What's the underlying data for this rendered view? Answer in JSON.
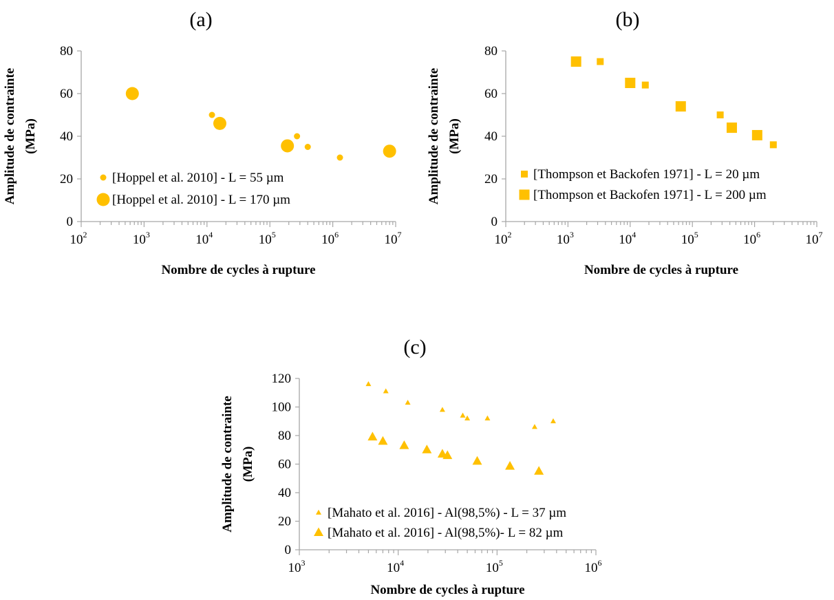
{
  "colors": {
    "marker": "#ffc000",
    "axis": "#a6a6a6",
    "text": "#000000"
  },
  "chart_data": [
    {
      "type": "scatter",
      "panel_label": "(a)",
      "xlabel": "Nombre  de cycles à rupture",
      "ylabel_line1": "Amplitude  de  contrainte",
      "ylabel_line2": "(MPa)",
      "x_scale": "log",
      "xlim": [
        100,
        10000000
      ],
      "ylim": [
        0,
        80
      ],
      "yticks": [
        "0",
        "20",
        "40",
        "60",
        "80"
      ],
      "xticks": [
        {
          "base": "10",
          "exp": "2"
        },
        {
          "base": "10",
          "exp": "3"
        },
        {
          "base": "10",
          "exp": "4"
        },
        {
          "base": "10",
          "exp": "5"
        },
        {
          "base": "10",
          "exp": "6"
        },
        {
          "base": "10",
          "exp": "7"
        }
      ],
      "grid": false,
      "legend_position": "bottom-left",
      "series": [
        {
          "name": "[Hoppel et al. 2010] - L = 55 µm",
          "marker": "circle",
          "marker_scale": "small",
          "points": [
            [
              12000,
              50
            ],
            [
              270000,
              40
            ],
            [
              400000,
              35
            ],
            [
              1300000,
              30
            ]
          ]
        },
        {
          "name": "[Hoppel et al. 2010] - L = 170 µm",
          "marker": "circle",
          "marker_scale": "large",
          "points": [
            [
              650,
              60
            ],
            [
              16000,
              46
            ],
            [
              190000,
              35.5
            ],
            [
              8000000,
              33
            ]
          ]
        }
      ]
    },
    {
      "type": "scatter",
      "panel_label": "(b)",
      "xlabel": "Nombre  de cycles à rupture",
      "ylabel_line1": "Amplitude  de  contrainte",
      "ylabel_line2": "(MPa)",
      "x_scale": "log",
      "xlim": [
        100,
        10000000
      ],
      "ylim": [
        0,
        80
      ],
      "yticks": [
        "0",
        "20",
        "40",
        "60",
        "80"
      ],
      "xticks": [
        {
          "base": "10",
          "exp": "2"
        },
        {
          "base": "10",
          "exp": "3"
        },
        {
          "base": "10",
          "exp": "4"
        },
        {
          "base": "10",
          "exp": "5"
        },
        {
          "base": "10",
          "exp": "6"
        },
        {
          "base": "10",
          "exp": "7"
        }
      ],
      "grid": false,
      "legend_position": "bottom-left",
      "series": [
        {
          "name": "[Thompson et Backofen 1971] - L = 20 µm",
          "marker": "square",
          "marker_scale": "small",
          "points": [
            [
              3300,
              75
            ],
            [
              17500,
              64
            ],
            [
              280000,
              50
            ],
            [
              2000000,
              36
            ]
          ]
        },
        {
          "name": "[Thompson et Backofen 1971] - L = 200 µm",
          "marker": "square",
          "marker_scale": "large",
          "points": [
            [
              1350,
              75
            ],
            [
              10000,
              65
            ],
            [
              65000,
              54
            ],
            [
              430000,
              44
            ],
            [
              1100000,
              40.5
            ]
          ]
        }
      ]
    },
    {
      "type": "scatter",
      "panel_label": "(c)",
      "xlabel": "Nombre  de cycles à rupture",
      "ylabel_line1": "Amplitude  de  contrainte",
      "ylabel_line2": "(MPa)",
      "x_scale": "log",
      "xlim": [
        1000,
        1000000
      ],
      "ylim": [
        0,
        120
      ],
      "yticks": [
        "0",
        "20",
        "40",
        "60",
        "80",
        "100",
        "120"
      ],
      "xticks": [
        {
          "base": "10",
          "exp": "3"
        },
        {
          "base": "10",
          "exp": "4"
        },
        {
          "base": "10",
          "exp": "5"
        },
        {
          "base": "10",
          "exp": "6"
        }
      ],
      "grid": false,
      "legend_position": "bottom-left",
      "series": [
        {
          "name": "[Mahato et al. 2016] - Al(98,5%) - L = 37 µm",
          "marker": "triangle",
          "marker_scale": "small",
          "points": [
            [
              5000,
              116
            ],
            [
              7500,
              111
            ],
            [
              12500,
              103
            ],
            [
              28000,
              98
            ],
            [
              45000,
              94
            ],
            [
              50000,
              92
            ],
            [
              80000,
              92
            ],
            [
              240000,
              86
            ],
            [
              370000,
              90
            ]
          ]
        },
        {
          "name": "[Mahato et al. 2016] - Al(98,5%)- L = 82 µm",
          "marker": "triangle",
          "marker_scale": "large",
          "points": [
            [
              5500,
              79
            ],
            [
              7000,
              76
            ],
            [
              11500,
              73
            ],
            [
              19500,
              70
            ],
            [
              28000,
              67
            ],
            [
              31500,
              66
            ],
            [
              63000,
              62
            ],
            [
              135000,
              58.5
            ],
            [
              265000,
              55
            ]
          ]
        }
      ]
    }
  ]
}
